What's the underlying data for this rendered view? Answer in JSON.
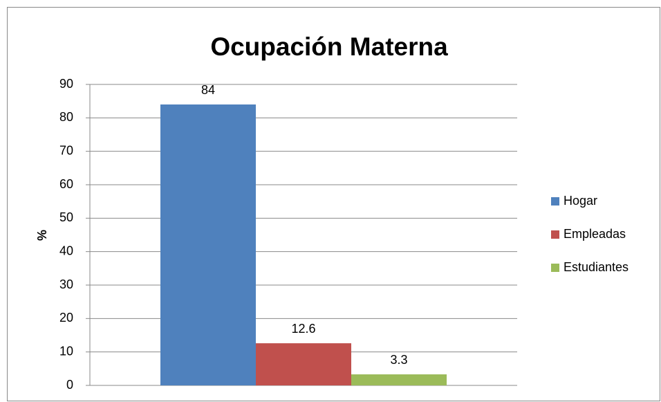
{
  "chart_data": {
    "type": "bar",
    "title": "Ocupación Materna",
    "ylabel": "%",
    "categories": [
      null
    ],
    "series": [
      {
        "name": "Hogar",
        "color": "#4f81bd",
        "values": [
          84
        ]
      },
      {
        "name": "Empleadas",
        "color": "#c0504d",
        "values": [
          12.6
        ]
      },
      {
        "name": "Estudiantes",
        "color": "#9bbb59",
        "values": [
          3.3
        ]
      }
    ],
    "ylim": [
      0,
      90
    ],
    "yticks": [
      0,
      10,
      20,
      30,
      40,
      50,
      60,
      70,
      80,
      90
    ],
    "grid": true,
    "legend": "right"
  }
}
